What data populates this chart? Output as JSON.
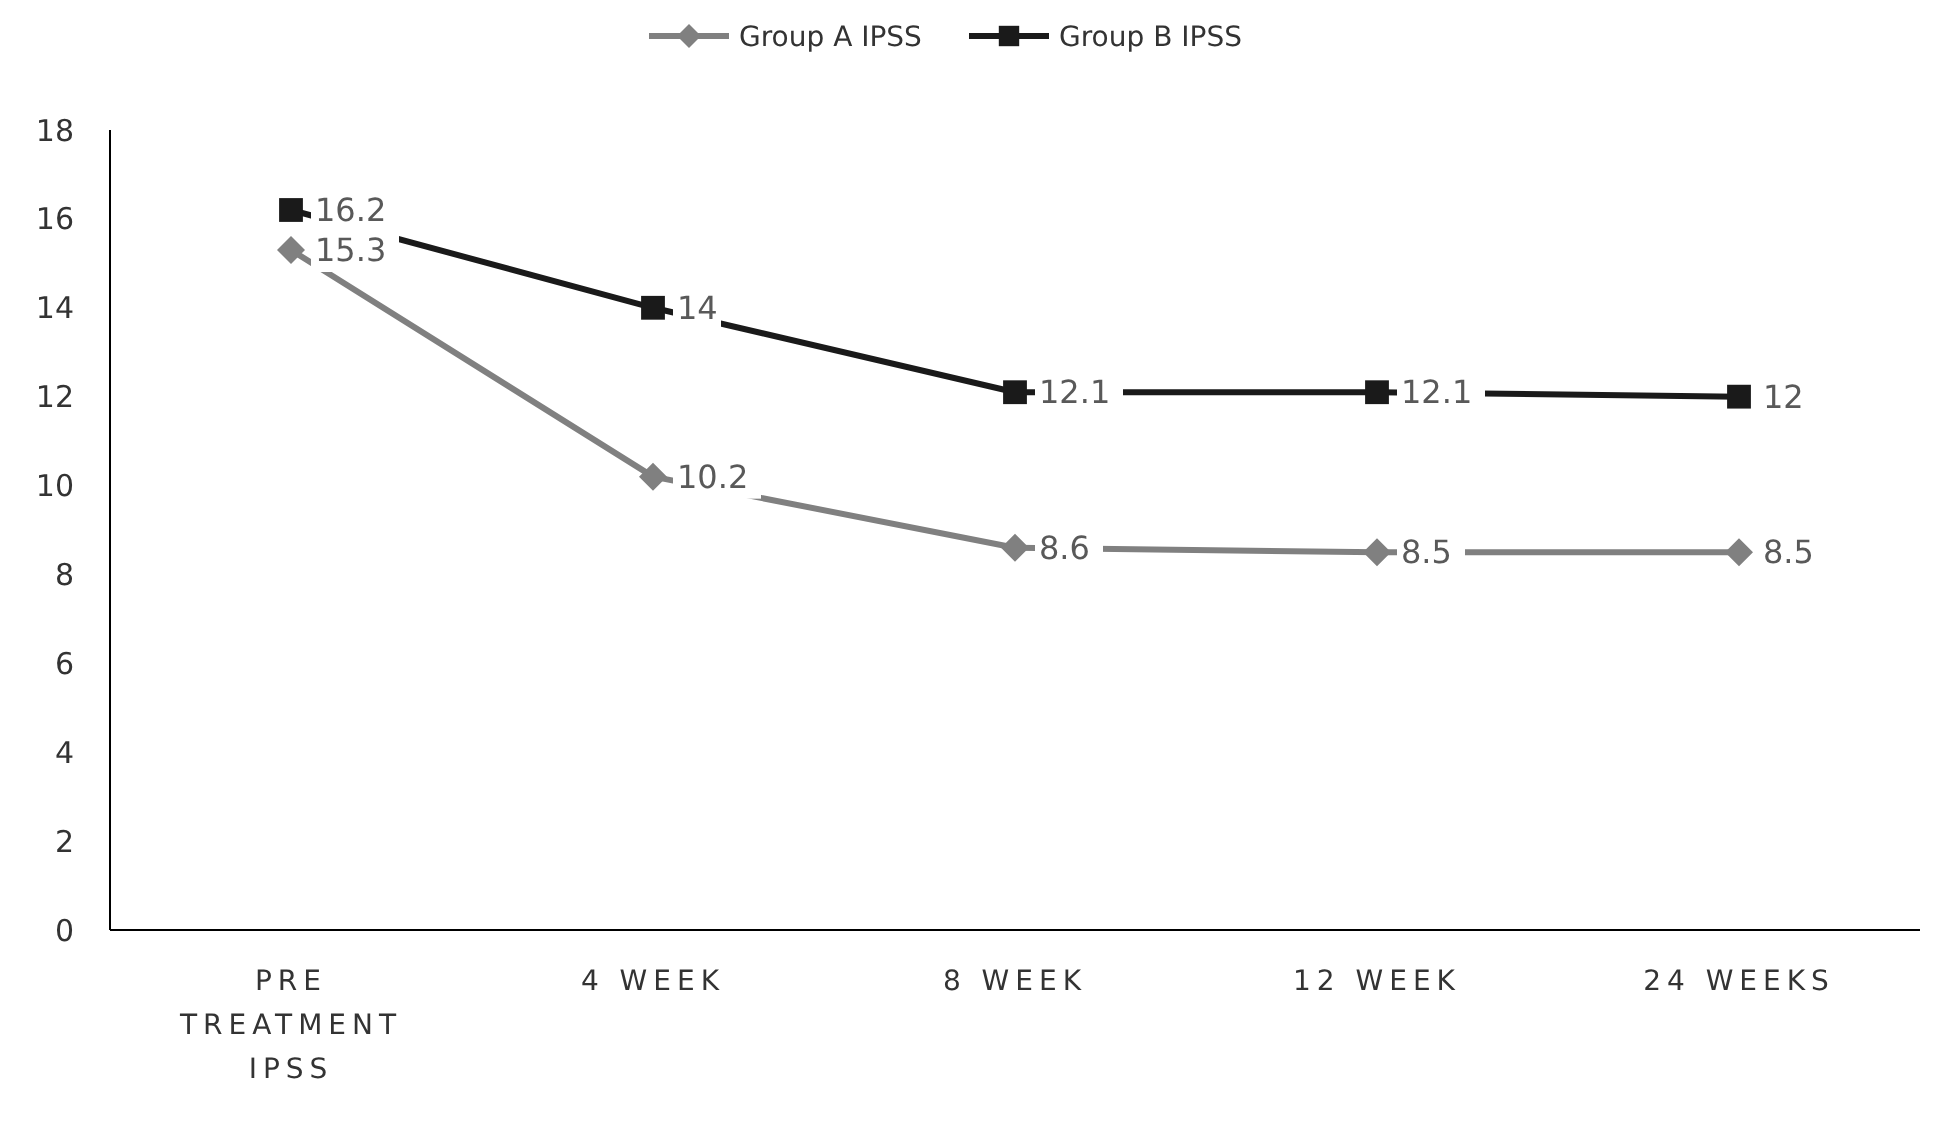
{
  "chart_data": {
    "type": "line",
    "categories": [
      "PRE TREATMENT IPSS",
      "4 WEEK",
      "8 WEEK",
      "12 WEEK",
      "24 WEEKS"
    ],
    "series": [
      {
        "name": "Group A IPSS",
        "color": "#808080",
        "marker": "diamond",
        "values": [
          15.3,
          10.2,
          8.6,
          8.5,
          8.5
        ]
      },
      {
        "name": "Group B IPSS",
        "color": "#1a1a1a",
        "marker": "square",
        "values": [
          16.2,
          14,
          12.1,
          12.1,
          12
        ]
      }
    ],
    "ylim": [
      0,
      18
    ],
    "yticks": [
      0,
      2,
      4,
      6,
      8,
      10,
      12,
      14,
      16,
      18
    ],
    "grid": false,
    "legend": "top",
    "data_labels": true
  }
}
